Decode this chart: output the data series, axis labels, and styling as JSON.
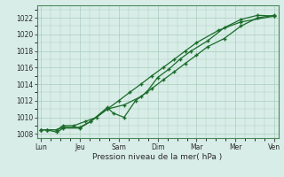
{
  "background_color": "#d8ede8",
  "plot_bg_color": "#d8ede8",
  "grid_color": "#aaccbb",
  "line_color": "#1a6b2a",
  "xlabel": "Pression niveau de la mer( hPa )",
  "ylim": [
    1007.5,
    1023.5
  ],
  "yticks": [
    1008,
    1010,
    1012,
    1014,
    1016,
    1018,
    1020,
    1022
  ],
  "xtick_labels": [
    "Lun",
    "Jeu",
    "Sam",
    "Dim",
    "Mar",
    "Mer",
    "Ven"
  ],
  "xtick_positions": [
    0,
    1,
    2,
    3,
    4,
    5,
    6
  ],
  "series1_x": [
    0.0,
    0.15,
    0.42,
    0.57,
    1.0,
    1.28,
    1.71,
    1.86,
    2.14,
    2.43,
    2.71,
    3.0,
    3.29,
    3.57,
    3.86,
    4.28,
    4.71,
    5.14,
    5.57,
    6.0
  ],
  "series1_y": [
    1008.5,
    1008.5,
    1008.2,
    1008.7,
    1008.7,
    1009.5,
    1011.2,
    1010.5,
    1010.0,
    1012.0,
    1013.0,
    1014.8,
    1015.8,
    1017.0,
    1018.0,
    1019.2,
    1020.8,
    1021.8,
    1022.3,
    1022.2
  ],
  "series2_x": [
    0.0,
    0.15,
    0.42,
    0.57,
    1.0,
    1.28,
    1.71,
    2.14,
    2.57,
    2.86,
    3.14,
    3.43,
    3.71,
    4.0,
    4.28,
    4.71,
    5.14,
    5.57,
    6.0
  ],
  "series2_y": [
    1008.5,
    1008.5,
    1008.5,
    1008.8,
    1008.8,
    1009.5,
    1011.0,
    1011.5,
    1012.5,
    1013.5,
    1014.5,
    1015.5,
    1016.5,
    1017.5,
    1018.5,
    1019.5,
    1021.0,
    1022.0,
    1022.3
  ],
  "series3_x": [
    0.0,
    0.15,
    0.42,
    0.57,
    0.85,
    1.14,
    1.43,
    1.71,
    2.0,
    2.28,
    2.57,
    2.85,
    3.14,
    3.43,
    3.71,
    4.0,
    4.57,
    5.14,
    6.0
  ],
  "series3_y": [
    1008.5,
    1008.5,
    1008.5,
    1009.0,
    1009.0,
    1009.5,
    1010.0,
    1011.0,
    1012.0,
    1013.0,
    1014.0,
    1015.0,
    1016.0,
    1017.0,
    1018.0,
    1019.0,
    1020.5,
    1021.5,
    1022.2
  ]
}
